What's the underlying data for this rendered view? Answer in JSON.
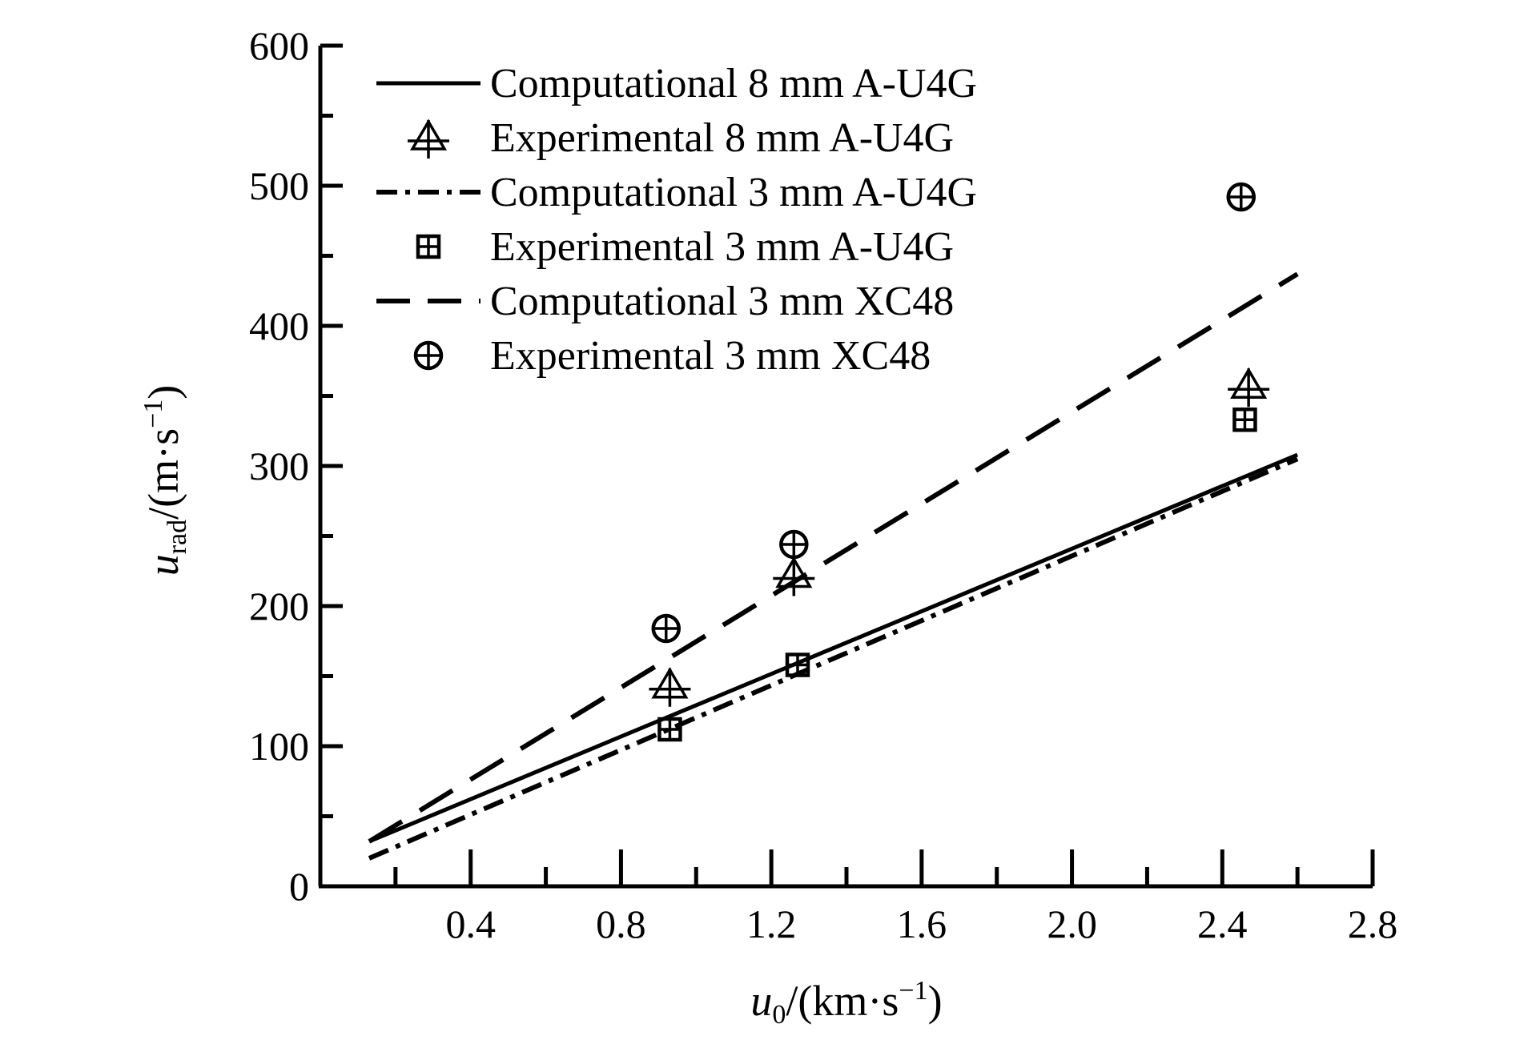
{
  "chart_data": {
    "type": "line",
    "xlabel": {
      "var": "u",
      "sub": "0",
      "unit": "/(km·s",
      "sup": "−1",
      "close": ")"
    },
    "ylabel": {
      "var": "u",
      "sub": "rad",
      "unit": "/(m·s",
      "sup": "−1",
      "close": ")"
    },
    "xlim": [
      0.0,
      2.8
    ],
    "ylim": [
      0,
      600
    ],
    "x_ticks_major": [
      0.4,
      0.8,
      1.2,
      1.6,
      2.0,
      2.4,
      2.8
    ],
    "x_ticks_minor": [
      0.2,
      0.6,
      1.0,
      1.4,
      1.8,
      2.2,
      2.6
    ],
    "x_tick_labels": [
      "0.4",
      "0.8",
      "1.2",
      "1.6",
      "2.0",
      "2.4",
      "2.8"
    ],
    "y_ticks_major": [
      0,
      100,
      200,
      300,
      400,
      500,
      600
    ],
    "y_ticks_minor": [
      50,
      150,
      250,
      350,
      450,
      550
    ],
    "y_tick_labels": [
      "0",
      "100",
      "200",
      "300",
      "400",
      "500",
      "600"
    ],
    "grid": false,
    "legend_position": "top-left",
    "series": [
      {
        "name": "Computational 8 mm A-U4G",
        "kind": "line",
        "style": "solid",
        "x": [
          0.13,
          2.6
        ],
        "y": [
          32,
          308
        ]
      },
      {
        "name": "Experimental 8 mm A-U4G",
        "kind": "marker",
        "marker": "triangle-plus",
        "x": [
          0.93,
          1.26,
          2.47
        ],
        "y": [
          143,
          222,
          357
        ]
      },
      {
        "name": "Computational 3 mm A-U4G",
        "kind": "line",
        "style": "dashdot",
        "x": [
          0.13,
          2.6
        ],
        "y": [
          20,
          305
        ]
      },
      {
        "name": "Experimental 3 mm A-U4G",
        "kind": "marker",
        "marker": "square-plus",
        "x": [
          0.93,
          1.27,
          2.46
        ],
        "y": [
          112,
          158,
          333
        ]
      },
      {
        "name": "Computational 3 mm XC48",
        "kind": "line",
        "style": "dashed",
        "x": [
          0.13,
          2.6
        ],
        "y": [
          32,
          437
        ]
      },
      {
        "name": "Experimental 3 mm XC48",
        "kind": "marker",
        "marker": "circle-plus",
        "x": [
          0.92,
          1.26,
          2.45
        ],
        "y": [
          184,
          244,
          492
        ]
      }
    ]
  }
}
